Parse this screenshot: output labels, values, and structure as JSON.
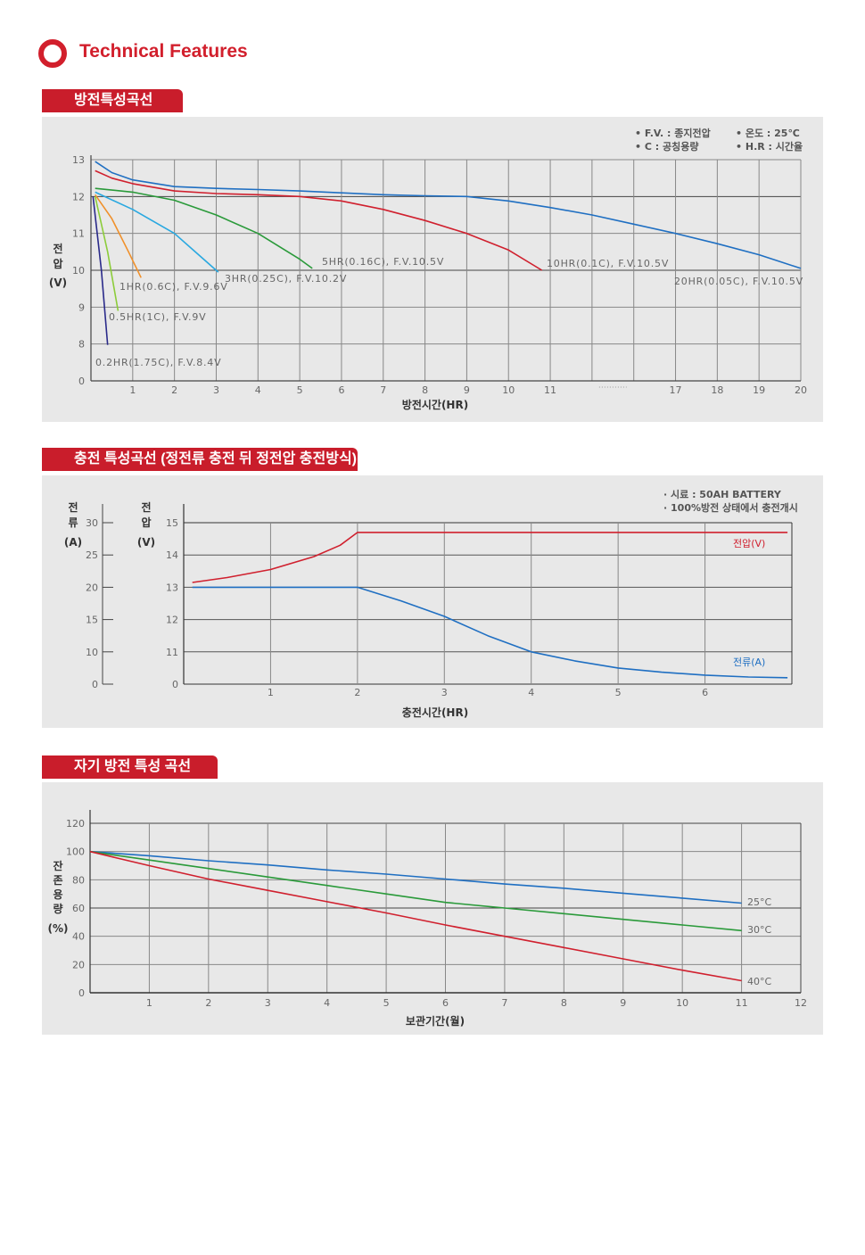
{
  "header": {
    "title": "Technical Features",
    "icon": "ring-bullet-icon",
    "accent": "#d21f2c"
  },
  "sections": [
    {
      "tab": "방전특성곡선"
    },
    {
      "tab": "충전 특성곡선 (정전류 충전 뒤 정전압 충전방식)"
    },
    {
      "tab": "자기 방전 특성 곡선"
    }
  ],
  "chart_data": [
    {
      "type": "line",
      "title": "방전특성곡선",
      "xlabel": "방전시간(HR)",
      "ylabel": [
        "전",
        "압",
        "(V)"
      ],
      "notes": [
        "• F.V. : 종지전압",
        "• C : 공칭용량",
        "• 온도 : 25℃",
        "• H.R : 시간율"
      ],
      "y_ticks": [
        13,
        12,
        11,
        10,
        9,
        8,
        0
      ],
      "x_ticks": [
        1,
        2,
        3,
        4,
        5,
        6,
        7,
        8,
        9,
        10,
        11,
        17,
        18,
        19,
        20
      ],
      "x_break": [
        11,
        17
      ],
      "grid": true,
      "series": [
        {
          "name": "20HR(0.05C), F.V.10.5V",
          "color": "#1f6fc2",
          "points": [
            [
              0.1,
              12.95
            ],
            [
              0.5,
              12.65
            ],
            [
              1,
              12.45
            ],
            [
              2,
              12.27
            ],
            [
              3,
              12.22
            ],
            [
              4,
              12.19
            ],
            [
              5,
              12.15
            ],
            [
              6,
              12.1
            ],
            [
              7,
              12.05
            ],
            [
              8,
              12.02
            ],
            [
              9,
              12.0
            ],
            [
              10,
              11.88
            ],
            [
              11,
              11.7
            ],
            [
              13,
              11.5
            ],
            [
              15,
              11.25
            ],
            [
              17,
              11.0
            ],
            [
              18,
              10.72
            ],
            [
              19,
              10.42
            ],
            [
              20,
              10.05
            ]
          ]
        },
        {
          "name": "10HR(0.1C), F.V.10.5V",
          "color": "#d0202e",
          "points": [
            [
              0.1,
              12.7
            ],
            [
              0.5,
              12.5
            ],
            [
              1,
              12.35
            ],
            [
              2,
              12.15
            ],
            [
              3,
              12.08
            ],
            [
              4,
              12.05
            ],
            [
              5,
              12.0
            ],
            [
              6,
              11.88
            ],
            [
              7,
              11.65
            ],
            [
              8,
              11.35
            ],
            [
              9,
              11.0
            ],
            [
              10,
              10.55
            ],
            [
              10.8,
              10.0
            ]
          ]
        },
        {
          "name": "5HR(0.16C), F.V.10.5V",
          "color": "#2a9a3a",
          "points": [
            [
              0.1,
              12.22
            ],
            [
              1,
              12.12
            ],
            [
              2,
              11.9
            ],
            [
              3,
              11.5
            ],
            [
              4,
              11.0
            ],
            [
              5,
              10.3
            ],
            [
              5.3,
              10.05
            ]
          ]
        },
        {
          "name": "3HR(0.25C), F.V.10.2V",
          "color": "#29a8e0",
          "points": [
            [
              0.1,
              12.12
            ],
            [
              1,
              11.65
            ],
            [
              2,
              11.0
            ],
            [
              2.6,
              10.4
            ],
            [
              3.05,
              9.95
            ]
          ]
        },
        {
          "name": "1HR(0.6C), F.V.9.6V",
          "color": "#f0902a",
          "points": [
            [
              0.1,
              12.05
            ],
            [
              0.5,
              11.4
            ],
            [
              0.9,
              10.5
            ],
            [
              1.2,
              9.8
            ]
          ]
        },
        {
          "name": "0.5HR(1C), F.V.9V",
          "color": "#8ccc3a",
          "points": [
            [
              0.1,
              12.0
            ],
            [
              0.4,
              10.5
            ],
            [
              0.65,
              8.9
            ]
          ]
        },
        {
          "name": "0.2HR(1.75C), F.V.8.4V",
          "color": "#2a2a8a",
          "points": [
            [
              0.05,
              12.0
            ],
            [
              0.25,
              10.0
            ],
            [
              0.4,
              7.8
            ]
          ]
        }
      ]
    },
    {
      "type": "line",
      "title": "충전 특성곡선 (정전류 충전 뒤 정전압 충전방식)",
      "xlabel": "충전시간(HR)",
      "ylabel_current": [
        "전",
        "류",
        "(A)"
      ],
      "ylabel_voltage": [
        "전",
        "압",
        "(V)"
      ],
      "notes": [
        "· 시료 : 50AH BATTERY",
        "· 100%방전 상태에서 충전개시"
      ],
      "y_ticks_current": [
        30,
        25,
        20,
        15,
        10,
        0
      ],
      "y_ticks_voltage": [
        15,
        14,
        13,
        12,
        11,
        0
      ],
      "x_ticks": [
        1,
        2,
        3,
        4,
        5,
        6
      ],
      "xlim": [
        0,
        7
      ],
      "grid": true,
      "series": [
        {
          "name": "전압(V)",
          "axis": "voltage",
          "color": "#d0202e",
          "points": [
            [
              0.1,
              13.15
            ],
            [
              0.5,
              13.3
            ],
            [
              1,
              13.55
            ],
            [
              1.5,
              13.95
            ],
            [
              1.8,
              14.3
            ],
            [
              2,
              14.7
            ],
            [
              6.95,
              14.7
            ]
          ]
        },
        {
          "name": "전류(A)",
          "axis": "current",
          "color": "#1f6fc2",
          "points": [
            [
              0.1,
              20
            ],
            [
              2,
              20
            ],
            [
              2.5,
              17.9
            ],
            [
              3,
              15.5
            ],
            [
              3.5,
              12.5
            ],
            [
              4,
              10
            ],
            [
              4.5,
              7.2
            ],
            [
              5,
              5
            ],
            [
              5.5,
              3.7
            ],
            [
              6,
              2.8
            ],
            [
              6.5,
              2.2
            ],
            [
              6.95,
              2.0
            ]
          ]
        }
      ]
    },
    {
      "type": "line",
      "title": "자기 방전 특성 곡선",
      "xlabel": "보관기간(월)",
      "ylabel": [
        "잔",
        "존",
        "용",
        "량",
        "(%)"
      ],
      "y_ticks": [
        120,
        100,
        80,
        60,
        40,
        20,
        0
      ],
      "x_ticks": [
        1,
        2,
        3,
        4,
        5,
        6,
        7,
        8,
        9,
        10,
        11,
        12
      ],
      "xlim": [
        0,
        12
      ],
      "ylim": [
        0,
        120
      ],
      "grid": true,
      "series": [
        {
          "name": "25°C",
          "color": "#1f6fc2",
          "points": [
            [
              0,
              100
            ],
            [
              1,
              97
            ],
            [
              2,
              93.5
            ],
            [
              3,
              90.5
            ],
            [
              4,
              87
            ],
            [
              5,
              84
            ],
            [
              6,
              80.5
            ],
            [
              7,
              77
            ],
            [
              8,
              74
            ],
            [
              9,
              70.5
            ],
            [
              10,
              67
            ],
            [
              11,
              63.5
            ]
          ]
        },
        {
          "name": "30°C",
          "color": "#2a9a3a",
          "points": [
            [
              0,
              100
            ],
            [
              1,
              94
            ],
            [
              2,
              88
            ],
            [
              3,
              82
            ],
            [
              4,
              76
            ],
            [
              5,
              70
            ],
            [
              6,
              64
            ],
            [
              7,
              60
            ],
            [
              8,
              56
            ],
            [
              9,
              52
            ],
            [
              10,
              48
            ],
            [
              11,
              44
            ]
          ]
        },
        {
          "name": "40°C",
          "color": "#d0202e",
          "points": [
            [
              0,
              100
            ],
            [
              1,
              90
            ],
            [
              2,
              80.5
            ],
            [
              3,
              72.5
            ],
            [
              4,
              64.5
            ],
            [
              5,
              56.5
            ],
            [
              6,
              48
            ],
            [
              7,
              40
            ],
            [
              8,
              32
            ],
            [
              9,
              24
            ],
            [
              10,
              16
            ],
            [
              11,
              8.5
            ]
          ]
        }
      ]
    }
  ]
}
